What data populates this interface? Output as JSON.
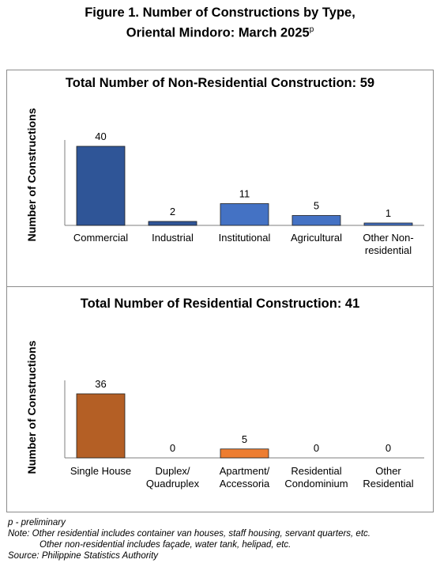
{
  "figure": {
    "title_line1": "Figure 1. Number of Constructions by Type,",
    "title_line2": "Oriental Mindoro: March 2025",
    "title_superscript": "p"
  },
  "chart_data": [
    {
      "type": "bar",
      "title": "Total Number of Non-Residential Construction: 59",
      "ylabel": "Number of Constructions",
      "xlabel": "",
      "categories": [
        [
          "Commercial"
        ],
        [
          "Industrial"
        ],
        [
          "Institutional"
        ],
        [
          "Agricultural"
        ],
        [
          "Other Non-",
          "residential"
        ]
      ],
      "values": [
        40,
        2,
        11,
        5,
        1
      ],
      "colors": [
        "#2f5597",
        "#2f5597",
        "#4472c4",
        "#4472c4",
        "#4472c4"
      ],
      "ylim": [
        0,
        40
      ],
      "grid": false,
      "legend": "none"
    },
    {
      "type": "bar",
      "title": "Total Number of Residential Construction: 41",
      "ylabel": "Number of Constructions",
      "xlabel": "",
      "categories": [
        [
          "Single House"
        ],
        [
          "Duplex/",
          "Quadruplex"
        ],
        [
          "Apartment/",
          "Accessoria"
        ],
        [
          "Residential",
          "Condominium"
        ],
        [
          "Other",
          "Residential"
        ]
      ],
      "values": [
        36,
        0,
        5,
        0,
        0
      ],
      "colors": [
        "#b45f25",
        "#b45f25",
        "#ed7d31",
        "#ed7d31",
        "#ed7d31"
      ],
      "ylim": [
        0,
        40
      ],
      "grid": false,
      "legend": "none"
    }
  ],
  "footer": {
    "preliminary": "p - preliminary",
    "note1": "Note: Other residential includes container van houses, staff housing, servant quarters, etc.",
    "note2": "Other non-residential includes façade, water tank, helipad, etc.",
    "source": "Source: Philippine Statistics Authority"
  }
}
